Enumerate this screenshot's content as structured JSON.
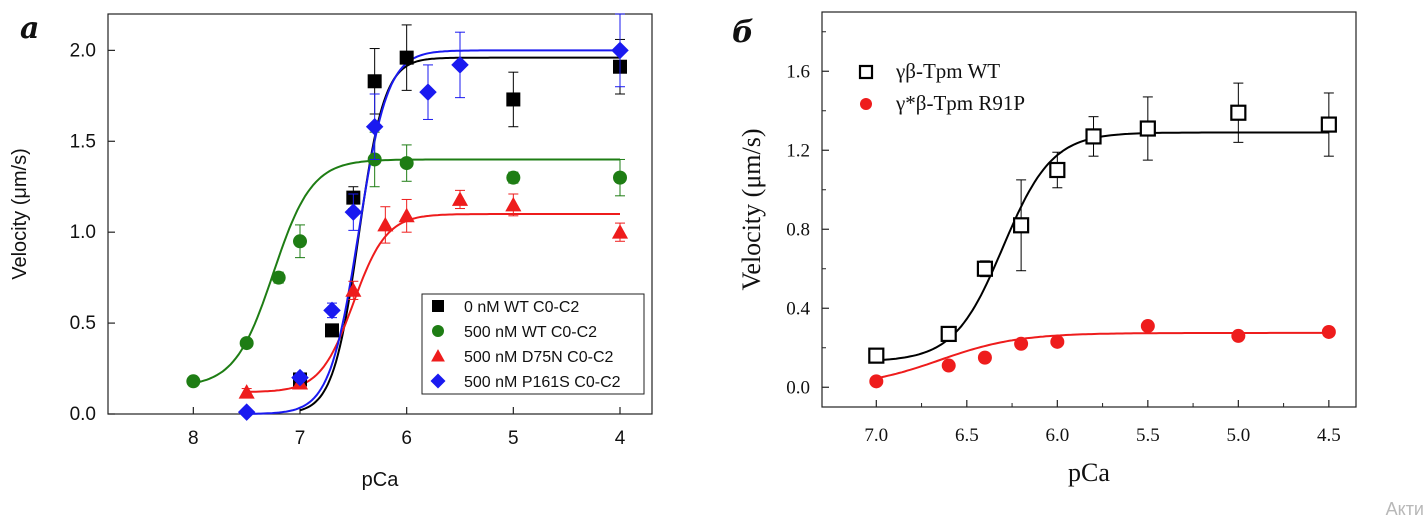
{
  "chart_data": [
    {
      "panel_label": "a",
      "type": "scatter",
      "xlabel": "pCa",
      "ylabel": "Velocity (μm/s)",
      "xlim": [
        8.8,
        3.7
      ],
      "ylim": [
        0,
        2.2
      ],
      "x_ticks": [
        8,
        7,
        6,
        5,
        4
      ],
      "y_ticks": [
        0.0,
        0.5,
        1.0,
        1.5,
        2.0
      ],
      "tick_labels_x": [
        "8",
        "7",
        "6",
        "5",
        "4"
      ],
      "tick_labels_y": [
        "0.0",
        "0.5",
        "1.0",
        "1.5",
        "2.0"
      ],
      "legend_position": "bottom-right",
      "series": [
        {
          "name": "0 nM WT C0-C2",
          "color": "#000000",
          "marker": "square",
          "points": [
            {
              "x": 7.0,
              "y": 0.19,
              "err": 0.02
            },
            {
              "x": 6.7,
              "y": 0.46,
              "err": 0.03
            },
            {
              "x": 6.5,
              "y": 1.19,
              "err": 0.06
            },
            {
              "x": 6.3,
              "y": 1.83,
              "err": 0.18
            },
            {
              "x": 6.0,
              "y": 1.96,
              "err": 0.18
            },
            {
              "x": 5.0,
              "y": 1.73,
              "err": 0.15
            },
            {
              "x": 4.0,
              "y": 1.91,
              "err": 0.15
            }
          ],
          "fit": {
            "ymin": 0.0,
            "ymax": 1.96,
            "pca50": 6.45,
            "n": 3.6
          }
        },
        {
          "name": "500 nM WT C0-C2",
          "color": "#1e7d14",
          "marker": "circle",
          "points": [
            {
              "x": 8.0,
              "y": 0.18,
              "err": 0.01
            },
            {
              "x": 7.5,
              "y": 0.39,
              "err": 0.02
            },
            {
              "x": 7.2,
              "y": 0.75,
              "err": 0.03
            },
            {
              "x": 7.0,
              "y": 0.95,
              "err": 0.09
            },
            {
              "x": 6.3,
              "y": 1.4,
              "err": 0.15
            },
            {
              "x": 6.0,
              "y": 1.38,
              "err": 0.1
            },
            {
              "x": 5.0,
              "y": 1.3,
              "err": 0.03
            },
            {
              "x": 4.0,
              "y": 1.3,
              "err": 0.1
            }
          ],
          "fit": {
            "ymin": 0.15,
            "ymax": 1.4,
            "pca50": 7.25,
            "n": 2.4
          }
        },
        {
          "name": "500 nM D75N C0-C2",
          "color": "#ee1c1c",
          "marker": "triangle",
          "points": [
            {
              "x": 7.5,
              "y": 0.12,
              "err": 0.02
            },
            {
              "x": 7.0,
              "y": 0.17,
              "err": 0.02
            },
            {
              "x": 6.5,
              "y": 0.68,
              "err": 0.05
            },
            {
              "x": 6.2,
              "y": 1.04,
              "err": 0.1
            },
            {
              "x": 6.0,
              "y": 1.09,
              "err": 0.09
            },
            {
              "x": 5.5,
              "y": 1.18,
              "err": 0.05
            },
            {
              "x": 5.0,
              "y": 1.15,
              "err": 0.06
            },
            {
              "x": 4.0,
              "y": 1.0,
              "err": 0.05
            }
          ],
          "fit": {
            "ymin": 0.12,
            "ymax": 1.1,
            "pca50": 6.5,
            "n": 2.8
          }
        },
        {
          "name": "500 nM P161S C0-C2",
          "color": "#1a1af0",
          "marker": "diamond",
          "points": [
            {
              "x": 7.5,
              "y": 0.01,
              "err": 0.01
            },
            {
              "x": 7.0,
              "y": 0.2,
              "err": 0.02
            },
            {
              "x": 6.7,
              "y": 0.57,
              "err": 0.04
            },
            {
              "x": 6.5,
              "y": 1.11,
              "err": 0.1
            },
            {
              "x": 6.3,
              "y": 1.58,
              "err": 0.18
            },
            {
              "x": 5.8,
              "y": 1.77,
              "err": 0.15
            },
            {
              "x": 5.5,
              "y": 1.92,
              "err": 0.18
            },
            {
              "x": 4.0,
              "y": 2.0,
              "err": 0.2
            }
          ],
          "fit": {
            "ymin": 0.0,
            "ymax": 2.0,
            "pca50": 6.45,
            "n": 3.2
          }
        }
      ]
    },
    {
      "panel_label": "б",
      "type": "scatter",
      "xlabel": "pCa",
      "ylabel": "Velocity (μm/s)",
      "xlim": [
        7.3,
        4.35
      ],
      "ylim": [
        -0.1,
        1.9
      ],
      "x_ticks": [
        7.0,
        6.5,
        6.0,
        5.5,
        5.0,
        4.5
      ],
      "y_ticks": [
        0.0,
        0.4,
        0.8,
        1.2,
        1.6
      ],
      "tick_labels_x": [
        "7.0",
        "6.5",
        "6.0",
        "5.5",
        "5.0",
        "4.5"
      ],
      "tick_labels_y": [
        "0.0",
        "0.4",
        "0.8",
        "1.2",
        "1.6"
      ],
      "legend_position": "top-left",
      "series": [
        {
          "name": "γβ-Tpm WT",
          "color": "#000000",
          "marker": "open-square",
          "points": [
            {
              "x": 7.0,
              "y": 0.16,
              "err": 0.02
            },
            {
              "x": 6.6,
              "y": 0.27,
              "err": 0.03
            },
            {
              "x": 6.4,
              "y": 0.6,
              "err": 0.04
            },
            {
              "x": 6.2,
              "y": 0.82,
              "err": 0.23
            },
            {
              "x": 6.0,
              "y": 1.1,
              "err": 0.09
            },
            {
              "x": 5.8,
              "y": 1.27,
              "err": 0.1
            },
            {
              "x": 5.5,
              "y": 1.31,
              "err": 0.16
            },
            {
              "x": 5.0,
              "y": 1.39,
              "err": 0.15
            },
            {
              "x": 4.5,
              "y": 1.33,
              "err": 0.16
            }
          ],
          "fit": {
            "ymin": 0.13,
            "ymax": 1.29,
            "pca50": 6.3,
            "n": 3.2
          }
        },
        {
          "name": "γ*β-Tpm R91P",
          "color": "#ee1c1c",
          "marker": "circle",
          "points": [
            {
              "x": 7.0,
              "y": 0.03
            },
            {
              "x": 6.6,
              "y": 0.11
            },
            {
              "x": 6.4,
              "y": 0.15
            },
            {
              "x": 6.2,
              "y": 0.22
            },
            {
              "x": 6.0,
              "y": 0.23
            },
            {
              "x": 5.5,
              "y": 0.31
            },
            {
              "x": 5.0,
              "y": 0.26
            },
            {
              "x": 4.5,
              "y": 0.28
            }
          ],
          "fit": {
            "ymin": 0.0,
            "ymax": 0.275,
            "pca50": 6.65,
            "n": 2.0
          }
        }
      ]
    }
  ],
  "watermark": "Акти"
}
